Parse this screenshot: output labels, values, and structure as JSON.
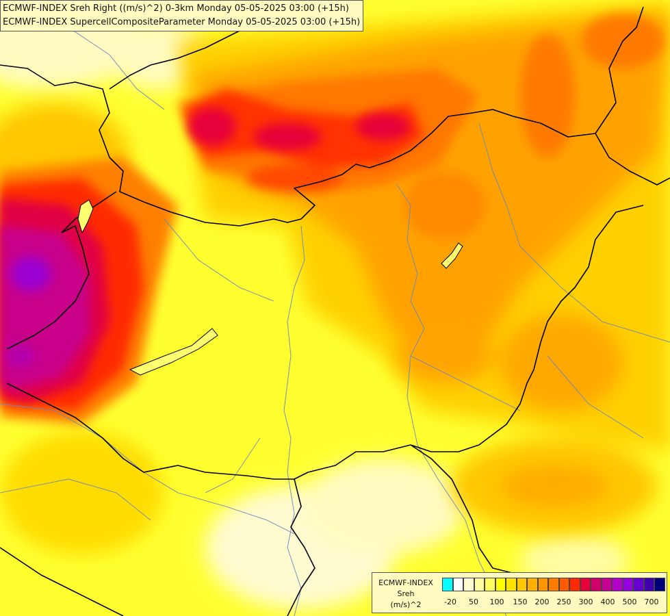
{
  "header": {
    "line1": "ECMWF-INDEX Sreh Right ((m/s)^2) 0-3km Monday 05-05-2025 03:00 (+15h)",
    "line2": "ECMWF-INDEX SupercellCompositeParameter Monday 05-05-2025 03:00 (+15h)"
  },
  "legend": {
    "line1": "ECMWF-INDEX",
    "line2": "Sreh",
    "line3": "(m/s)^2",
    "colors": [
      "#00ffff",
      "#ffffff",
      "#fffbd0",
      "#ffffa0",
      "#ffff60",
      "#ffff00",
      "#ffe400",
      "#ffc800",
      "#ffb000",
      "#ff9600",
      "#ff7c00",
      "#ff5a00",
      "#ff2a00",
      "#e8003a",
      "#d0006a",
      "#c80096",
      "#b400c8",
      "#9600e0",
      "#6400d0",
      "#4000b0",
      "#00007a"
    ],
    "ticks": [
      "-20",
      "50",
      "100",
      "150",
      "200",
      "250",
      "300",
      "400",
      "500",
      "700"
    ]
  },
  "map": {
    "field_colors": {
      "background": "#ffff80",
      "pale": "#fffbd0",
      "yellow": "#ffff00",
      "gold": "#ffd700",
      "orange": "#ffa000",
      "dark_orange": "#ff7a00",
      "red": "#ff2a00",
      "crimson": "#e00040",
      "magenta": "#c80096",
      "purple": "#9600e0"
    }
  }
}
